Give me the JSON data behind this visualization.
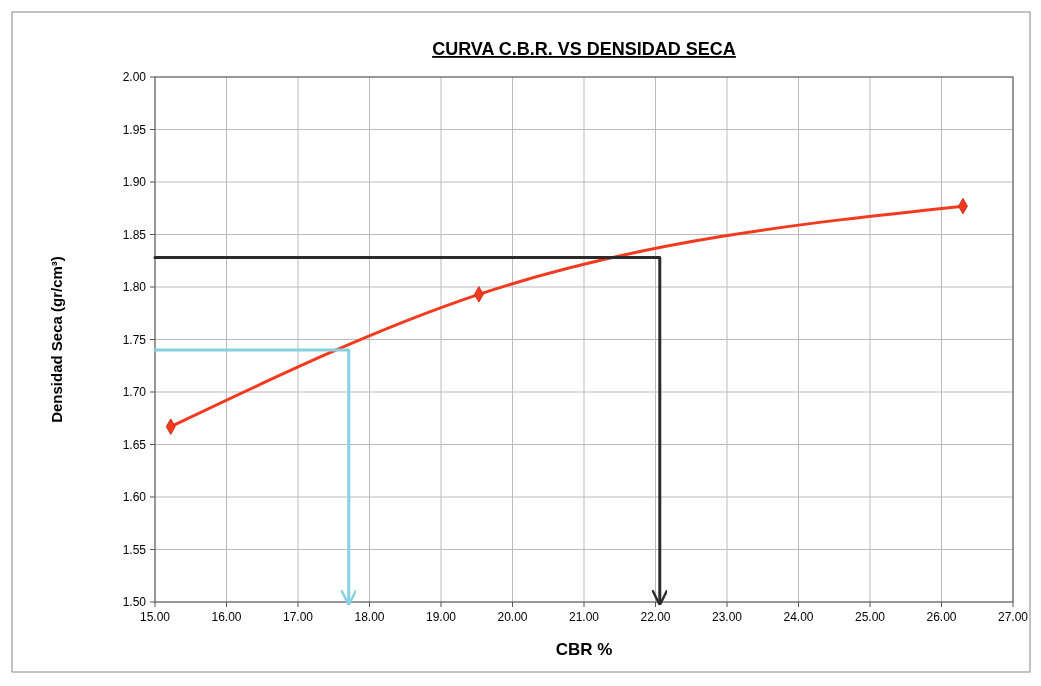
{
  "chart_data": {
    "type": "line",
    "title": "CURVA C.B.R. VS DENSIDAD SECA",
    "xlabel": "CBR %",
    "ylabel": "Densidad Seca (gr/cm³)",
    "xlim": [
      15,
      27
    ],
    "xticks": [
      {
        "value": 15,
        "label": "15.00"
      },
      {
        "value": 16,
        "label": "16.00"
      },
      {
        "value": 17,
        "label": "17.00"
      },
      {
        "value": 18,
        "label": "18.00"
      },
      {
        "value": 19,
        "label": "19.00"
      },
      {
        "value": 20,
        "label": "20.00"
      },
      {
        "value": 21,
        "label": "21.00"
      },
      {
        "value": 22,
        "label": "22.00"
      },
      {
        "value": 23,
        "label": "23.00"
      },
      {
        "value": 24,
        "label": "24.00"
      },
      {
        "value": 25,
        "label": "25.00"
      },
      {
        "value": 26,
        "label": "26.00"
      },
      {
        "value": 27,
        "label": "27.00"
      }
    ],
    "ylim": [
      1.5,
      2.0
    ],
    "yticks": [
      {
        "value": 1.5,
        "label": "1.50"
      },
      {
        "value": 1.55,
        "label": "1.55"
      },
      {
        "value": 1.6,
        "label": "1.60"
      },
      {
        "value": 1.65,
        "label": "1.65"
      },
      {
        "value": 1.7,
        "label": "1.70"
      },
      {
        "value": 1.75,
        "label": "1.75"
      },
      {
        "value": 1.8,
        "label": "1.80"
      },
      {
        "value": 1.85,
        "label": "1.85"
      },
      {
        "value": 1.9,
        "label": "1.90"
      },
      {
        "value": 1.95,
        "label": "1.95"
      },
      {
        "value": 2.0,
        "label": "2.00"
      }
    ],
    "grid": true,
    "series": [
      {
        "color": "#f23a1e",
        "x": [
          15.22,
          19.53,
          26.3
        ],
        "values": [
          1.667,
          1.793,
          1.877
        ],
        "marker": "diamond"
      },
      {
        "color": "#2b2b2b",
        "x": [
          15,
          22.06,
          22.06
        ],
        "values": [
          1.828,
          1.828,
          1.5
        ],
        "marker": "none"
      },
      {
        "color": "#86d0e0",
        "x": [
          15,
          17.71,
          17.71
        ],
        "values": [
          1.74,
          1.74,
          1.5
        ],
        "marker": "none"
      }
    ]
  }
}
